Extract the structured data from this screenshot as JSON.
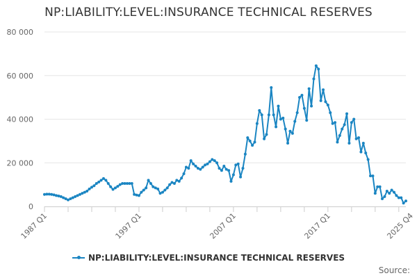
{
  "chart_data": {
    "type": "line",
    "title": "NP:LIABILITY:LEVEL:INSURANCE TECHNICAL RESERVES",
    "xlabel": "",
    "ylabel": "",
    "ylim": [
      0,
      80000
    ],
    "y_ticks": [
      0,
      20000,
      40000,
      60000,
      80000
    ],
    "y_tick_labels": [
      "0",
      "20 000",
      "40 000",
      "60 000",
      "80 000"
    ],
    "x_ticks": [
      {
        "index": 0,
        "label": "1987 Q1"
      },
      {
        "index": 40,
        "label": "1997 Q1"
      },
      {
        "index": 80,
        "label": "2007 Q1"
      },
      {
        "index": 120,
        "label": "2017 Q1"
      },
      {
        "index": 155,
        "label": "2025 Q4"
      }
    ],
    "grid": true,
    "legend_position": "bottom",
    "series": [
      {
        "name": "NP:LIABILITY:LEVEL:INSURANCE TECHNICAL RESERVES",
        "color": "#1a85c2",
        "start_period": "1987 Q1",
        "values": [
          5500,
          5600,
          5600,
          5500,
          5300,
          5000,
          4800,
          4500,
          4000,
          3500,
          3000,
          3500,
          4000,
          4500,
          5000,
          5500,
          6000,
          6500,
          7000,
          8000,
          8800,
          9500,
          10500,
          11200,
          12000,
          12800,
          12000,
          10500,
          9000,
          7800,
          8500,
          9200,
          10000,
          10500,
          10500,
          10500,
          10500,
          10500,
          5500,
          5200,
          5000,
          6500,
          7500,
          8500,
          12000,
          10500,
          9000,
          8500,
          8000,
          6000,
          6500,
          7500,
          8500,
          10000,
          11000,
          10500,
          12000,
          11500,
          13000,
          15000,
          18000,
          17500,
          21000,
          19500,
          18500,
          17500,
          17000,
          18000,
          19000,
          19500,
          20500,
          21500,
          21000,
          20000,
          17500,
          16500,
          18500,
          17000,
          16500,
          11500,
          14500,
          19000,
          19500,
          13500,
          17500,
          24000,
          31500,
          30000,
          28000,
          29500,
          38000,
          44000,
          42000,
          31000,
          33000,
          42000,
          54500,
          42000,
          36500,
          46000,
          40000,
          40500,
          35500,
          29000,
          34500,
          33500,
          39000,
          43000,
          50000,
          51000,
          45000,
          39500,
          54000,
          46000,
          58500,
          64500,
          63000,
          48500,
          53500,
          48000,
          46500,
          43000,
          38000,
          38500,
          29500,
          32500,
          35500,
          37500,
          42500,
          29000,
          38500,
          40000,
          31000,
          31500,
          25000,
          29000,
          24500,
          21500,
          14000,
          14000,
          6000,
          9000,
          9000,
          3500,
          4500,
          7000,
          6000,
          7500,
          6500,
          5000,
          4000,
          4000,
          1500,
          2500
        ]
      }
    ],
    "legend_label": "NP:LIABILITY:LEVEL:INSURANCE TECHNICAL RESERVES",
    "source_label": "Source:"
  }
}
